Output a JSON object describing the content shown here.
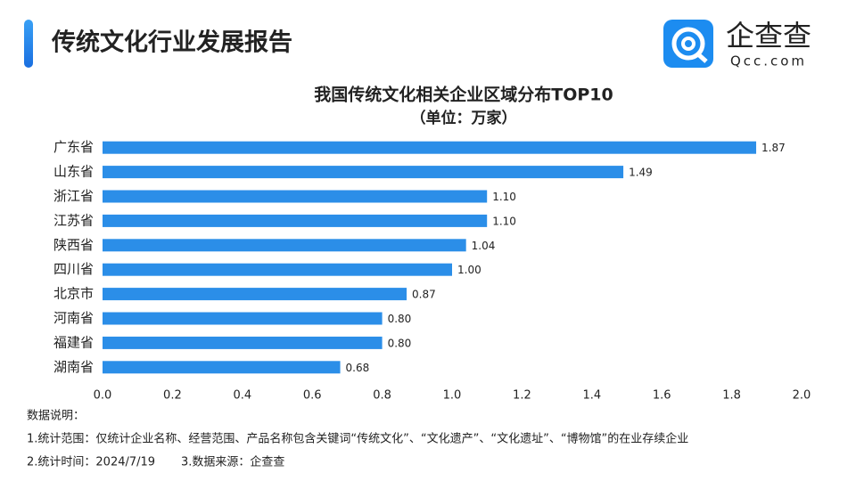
{
  "header": {
    "title": "传统文化行业发展报告"
  },
  "logo": {
    "name": "企查查",
    "domain": "Qcc.com"
  },
  "chart_data": {
    "type": "bar",
    "orientation": "horizontal",
    "title": "我国传统文化相关企业区域分布TOP10",
    "subtitle": "（单位：万家）",
    "categories": [
      "广东省",
      "山东省",
      "浙江省",
      "江苏省",
      "陕西省",
      "四川省",
      "北京市",
      "河南省",
      "福建省",
      "湖南省"
    ],
    "values": [
      1.87,
      1.49,
      1.1,
      1.1,
      1.04,
      1.0,
      0.87,
      0.8,
      0.8,
      0.68
    ],
    "value_labels": [
      "1.87",
      "1.49",
      "1.10",
      "1.10",
      "1.04",
      "1.00",
      "0.87",
      "0.80",
      "0.80",
      "0.68"
    ],
    "color": "#2b8ee8",
    "xlim": [
      0,
      2
    ],
    "xticks": [
      {
        "value": 0,
        "label": "0.0"
      },
      0.2,
      0.4,
      0.6,
      0.8,
      {
        "value": 1,
        "label": "1.0"
      },
      1.2,
      1.4,
      1.6,
      1.8,
      {
        "value": 2,
        "label": "2.0"
      }
    ],
    "grid": false
  },
  "notes": {
    "heading": "数据说明：",
    "scope": "1.统计范围：仅统计企业名称、经营范围、产品名称包含关键词“传统文化”、“文化遗产”、“文化遗址”、“博物馆”的在业存续企业",
    "time": "2.统计时间：2024/7/19",
    "source": "3.数据来源：企查查"
  }
}
